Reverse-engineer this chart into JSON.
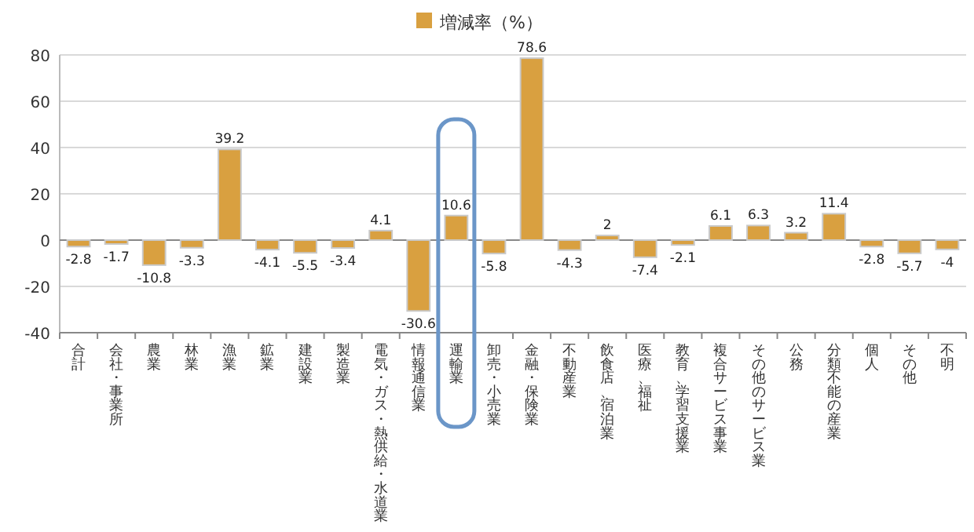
{
  "chart_data": {
    "type": "bar",
    "categories": [
      "合計",
      "会社・事業所",
      "農業",
      "林業",
      "漁業",
      "鉱業",
      "建設業",
      "製造業",
      "電気・ガス・熱供給・水道業",
      "情報通信業",
      "運輸業",
      "卸売・小売業",
      "金融・保険業",
      "不動産業",
      "飲食店、宿泊業",
      "医療、福祉",
      "教育、学習支援業",
      "複合サービス事業",
      "その他のサービス業",
      "公務",
      "分類不能の産業",
      "個人",
      "その他",
      "不明"
    ],
    "series": [
      {
        "name": "増減率（%）",
        "color": "#d9a040",
        "values": [
          -2.8,
          -1.7,
          -10.8,
          -3.3,
          39.2,
          -4.1,
          -5.5,
          -3.4,
          4.1,
          -30.6,
          10.6,
          -5.8,
          78.6,
          -4.3,
          2,
          -7.4,
          -2.1,
          6.1,
          6.3,
          3.2,
          11.4,
          -2.8,
          -5.7,
          -4
        ]
      }
    ],
    "ylim": [
      -40,
      80
    ],
    "yticks": [
      -40,
      -20,
      0,
      20,
      40,
      60,
      80
    ],
    "grid": "y",
    "legend": "top",
    "data_labels": true
  }
}
